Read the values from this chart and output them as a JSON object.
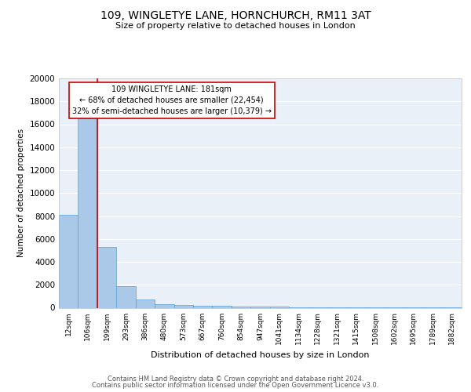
{
  "title": "109, WINGLETYE LANE, HORNCHURCH, RM11 3AT",
  "subtitle": "Size of property relative to detached houses in London",
  "xlabel": "Distribution of detached houses by size in London",
  "ylabel": "Number of detached properties",
  "categories": [
    "12sqm",
    "106sqm",
    "199sqm",
    "293sqm",
    "386sqm",
    "480sqm",
    "573sqm",
    "667sqm",
    "760sqm",
    "854sqm",
    "947sqm",
    "1041sqm",
    "1134sqm",
    "1228sqm",
    "1321sqm",
    "1415sqm",
    "1508sqm",
    "1602sqm",
    "1695sqm",
    "1789sqm",
    "1882sqm"
  ],
  "values": [
    8100,
    16500,
    5300,
    1850,
    700,
    300,
    220,
    180,
    160,
    130,
    90,
    80,
    60,
    50,
    40,
    30,
    25,
    20,
    15,
    12,
    10
  ],
  "bar_color": "#aac8e8",
  "bar_edge_color": "#5a9fd4",
  "bg_color": "#eaf0f8",
  "grid_color": "#ffffff",
  "annotation_box_color": "#cc0000",
  "annotation_line1": "109 WINGLETYE LANE: 181sqm",
  "annotation_line2": "← 68% of detached houses are smaller (22,454)",
  "annotation_line3": "32% of semi-detached houses are larger (10,379) →",
  "property_line_color": "#cc0000",
  "ylim": [
    0,
    20000
  ],
  "yticks": [
    0,
    2000,
    4000,
    6000,
    8000,
    10000,
    12000,
    14000,
    16000,
    18000,
    20000
  ],
  "footer_line1": "Contains HM Land Registry data © Crown copyright and database right 2024.",
  "footer_line2": "Contains public sector information licensed under the Open Government Licence v3.0.",
  "figsize": [
    6.0,
    5.0
  ],
  "dpi": 100
}
